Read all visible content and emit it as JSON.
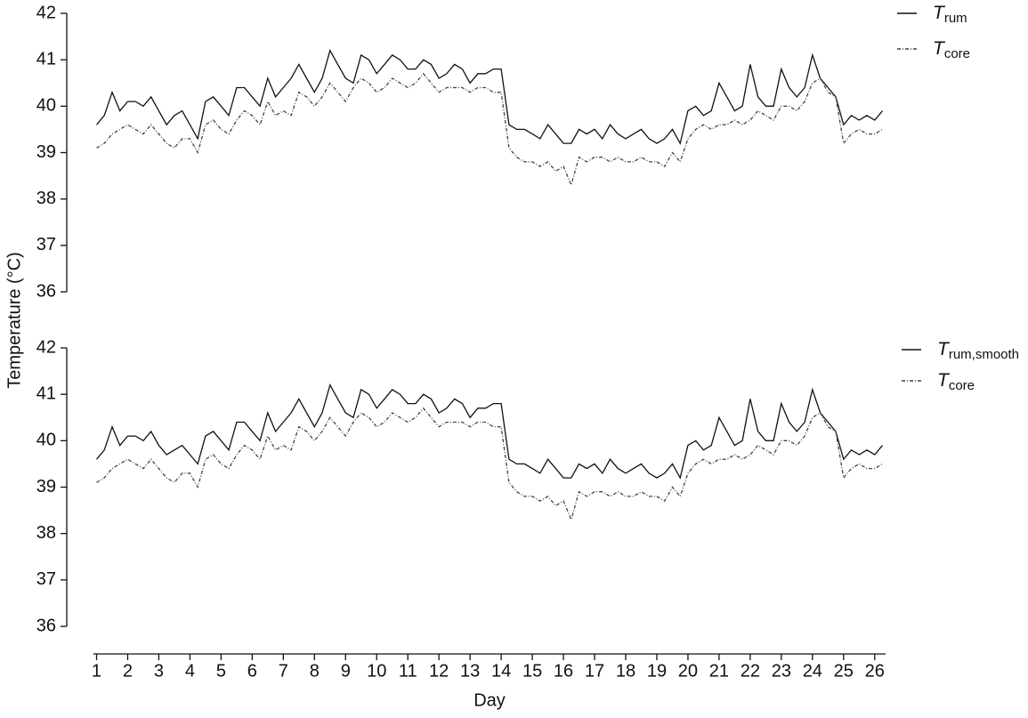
{
  "chart_data": [
    {
      "type": "line",
      "ylabel": "Temperature (°C)",
      "x": [
        1,
        1.25,
        1.5,
        1.75,
        2,
        2.25,
        2.5,
        2.75,
        3,
        3.25,
        3.5,
        3.75,
        4,
        4.25,
        4.5,
        4.75,
        5,
        5.25,
        5.5,
        5.75,
        6,
        6.25,
        6.5,
        6.75,
        7,
        7.25,
        7.5,
        7.75,
        8,
        8.25,
        8.5,
        8.75,
        9,
        9.25,
        9.5,
        9.75,
        10,
        10.25,
        10.5,
        10.75,
        11,
        11.25,
        11.5,
        11.75,
        12,
        12.25,
        12.5,
        12.75,
        13,
        13.25,
        13.5,
        13.75,
        14,
        14.25,
        14.5,
        14.75,
        15,
        15.25,
        15.5,
        15.75,
        16,
        16.25,
        16.5,
        16.75,
        17,
        17.25,
        17.5,
        17.75,
        18,
        18.25,
        18.5,
        18.75,
        19,
        19.25,
        19.5,
        19.75,
        20,
        20.25,
        20.5,
        20.75,
        21,
        21.25,
        21.5,
        21.75,
        22,
        22.25,
        22.5,
        22.75,
        23,
        23.25,
        23.5,
        23.75,
        24,
        24.25,
        24.5,
        24.75,
        25,
        25.25,
        25.5,
        25.75,
        26,
        26.25
      ],
      "series": [
        {
          "name": "T",
          "name_subscript": "rum",
          "color": "#111111",
          "line_style": "solid",
          "values": [
            39.6,
            39.8,
            40.3,
            39.9,
            40.1,
            40.1,
            40.0,
            40.2,
            39.9,
            39.6,
            39.8,
            39.9,
            39.6,
            39.3,
            40.1,
            40.2,
            40.0,
            39.8,
            40.4,
            40.4,
            40.2,
            40.0,
            40.6,
            40.2,
            40.4,
            40.6,
            40.9,
            40.6,
            40.3,
            40.6,
            41.2,
            40.9,
            40.6,
            40.5,
            41.1,
            41.0,
            40.7,
            40.9,
            41.1,
            41.0,
            40.8,
            40.8,
            41.0,
            40.9,
            40.6,
            40.7,
            40.9,
            40.8,
            40.5,
            40.7,
            40.7,
            40.8,
            40.8,
            39.6,
            39.5,
            39.5,
            39.4,
            39.3,
            39.6,
            39.4,
            39.2,
            39.2,
            39.5,
            39.4,
            39.5,
            39.3,
            39.6,
            39.4,
            39.3,
            39.4,
            39.5,
            39.3,
            39.2,
            39.3,
            39.5,
            39.2,
            39.9,
            40.0,
            39.8,
            39.9,
            40.5,
            40.2,
            39.9,
            40.0,
            40.9,
            40.2,
            40.0,
            40.0,
            40.8,
            40.4,
            40.2,
            40.4,
            41.1,
            40.6,
            40.4,
            40.2,
            39.6,
            39.8,
            39.7,
            39.8,
            39.7,
            39.9
          ]
        },
        {
          "name": "T",
          "name_subscript": "core",
          "color": "#444444",
          "line_style": "dash-dot",
          "values": [
            39.1,
            39.2,
            39.4,
            39.5,
            39.6,
            39.5,
            39.4,
            39.6,
            39.4,
            39.2,
            39.1,
            39.3,
            39.3,
            39.0,
            39.6,
            39.7,
            39.5,
            39.4,
            39.7,
            39.9,
            39.8,
            39.6,
            40.1,
            39.8,
            39.9,
            39.8,
            40.3,
            40.2,
            40.0,
            40.2,
            40.5,
            40.3,
            40.1,
            40.4,
            40.6,
            40.5,
            40.3,
            40.4,
            40.6,
            40.5,
            40.4,
            40.5,
            40.7,
            40.5,
            40.3,
            40.4,
            40.4,
            40.4,
            40.3,
            40.4,
            40.4,
            40.3,
            40.3,
            39.1,
            38.9,
            38.8,
            38.8,
            38.7,
            38.8,
            38.6,
            38.7,
            38.3,
            38.9,
            38.8,
            38.9,
            38.9,
            38.8,
            38.9,
            38.8,
            38.8,
            38.9,
            38.8,
            38.8,
            38.7,
            39.0,
            38.8,
            39.3,
            39.5,
            39.6,
            39.5,
            39.6,
            39.6,
            39.7,
            39.6,
            39.7,
            39.9,
            39.8,
            39.7,
            40.0,
            40.0,
            39.9,
            40.1,
            40.5,
            40.6,
            40.3,
            40.2,
            39.2,
            39.4,
            39.5,
            39.4,
            39.4,
            39.5
          ]
        }
      ],
      "xlim": [
        0.9,
        26.35
      ],
      "ylim": [
        36,
        42
      ],
      "yticks": [
        36,
        37,
        38,
        39,
        40,
        41,
        42
      ]
    },
    {
      "type": "line",
      "xlabel": "Day",
      "x": [
        1,
        1.25,
        1.5,
        1.75,
        2,
        2.25,
        2.5,
        2.75,
        3,
        3.25,
        3.5,
        3.75,
        4,
        4.25,
        4.5,
        4.75,
        5,
        5.25,
        5.5,
        5.75,
        6,
        6.25,
        6.5,
        6.75,
        7,
        7.25,
        7.5,
        7.75,
        8,
        8.25,
        8.5,
        8.75,
        9,
        9.25,
        9.5,
        9.75,
        10,
        10.25,
        10.5,
        10.75,
        11,
        11.25,
        11.5,
        11.75,
        12,
        12.25,
        12.5,
        12.75,
        13,
        13.25,
        13.5,
        13.75,
        14,
        14.25,
        14.5,
        14.75,
        15,
        15.25,
        15.5,
        15.75,
        16,
        16.25,
        16.5,
        16.75,
        17,
        17.25,
        17.5,
        17.75,
        18,
        18.25,
        18.5,
        18.75,
        19,
        19.25,
        19.5,
        19.75,
        20,
        20.25,
        20.5,
        20.75,
        21,
        21.25,
        21.5,
        21.75,
        22,
        22.25,
        22.5,
        22.75,
        23,
        23.25,
        23.5,
        23.75,
        24,
        24.25,
        24.5,
        24.75,
        25,
        25.25,
        25.5,
        25.75,
        26,
        26.25
      ],
      "series": [
        {
          "name": "T",
          "name_subscript": "rum,smooth",
          "color": "#111111",
          "line_style": "solid",
          "values": [
            39.6,
            39.8,
            40.3,
            39.9,
            40.1,
            40.1,
            40.0,
            40.2,
            39.9,
            39.7,
            39.8,
            39.9,
            39.7,
            39.5,
            40.1,
            40.2,
            40.0,
            39.8,
            40.4,
            40.4,
            40.2,
            40.0,
            40.6,
            40.2,
            40.4,
            40.6,
            40.9,
            40.6,
            40.3,
            40.6,
            41.2,
            40.9,
            40.6,
            40.5,
            41.1,
            41.0,
            40.7,
            40.9,
            41.1,
            41.0,
            40.8,
            40.8,
            41.0,
            40.9,
            40.6,
            40.7,
            40.9,
            40.8,
            40.5,
            40.7,
            40.7,
            40.8,
            40.8,
            39.6,
            39.5,
            39.5,
            39.4,
            39.3,
            39.6,
            39.4,
            39.2,
            39.2,
            39.5,
            39.4,
            39.5,
            39.3,
            39.6,
            39.4,
            39.3,
            39.4,
            39.5,
            39.3,
            39.2,
            39.3,
            39.5,
            39.2,
            39.9,
            40.0,
            39.8,
            39.9,
            40.5,
            40.2,
            39.9,
            40.0,
            40.9,
            40.2,
            40.0,
            40.0,
            40.8,
            40.4,
            40.2,
            40.4,
            41.1,
            40.6,
            40.4,
            40.2,
            39.6,
            39.8,
            39.7,
            39.8,
            39.7,
            39.9
          ]
        },
        {
          "name": "T",
          "name_subscript": "core",
          "color": "#444444",
          "line_style": "dash-dot",
          "values": [
            39.1,
            39.2,
            39.4,
            39.5,
            39.6,
            39.5,
            39.4,
            39.6,
            39.4,
            39.2,
            39.1,
            39.3,
            39.3,
            39.0,
            39.6,
            39.7,
            39.5,
            39.4,
            39.7,
            39.9,
            39.8,
            39.6,
            40.1,
            39.8,
            39.9,
            39.8,
            40.3,
            40.2,
            40.0,
            40.2,
            40.5,
            40.3,
            40.1,
            40.4,
            40.6,
            40.5,
            40.3,
            40.4,
            40.6,
            40.5,
            40.4,
            40.5,
            40.7,
            40.5,
            40.3,
            40.4,
            40.4,
            40.4,
            40.3,
            40.4,
            40.4,
            40.3,
            40.3,
            39.1,
            38.9,
            38.8,
            38.8,
            38.7,
            38.8,
            38.6,
            38.7,
            38.3,
            38.9,
            38.8,
            38.9,
            38.9,
            38.8,
            38.9,
            38.8,
            38.8,
            38.9,
            38.8,
            38.8,
            38.7,
            39.0,
            38.8,
            39.3,
            39.5,
            39.6,
            39.5,
            39.6,
            39.6,
            39.7,
            39.6,
            39.7,
            39.9,
            39.8,
            39.7,
            40.0,
            40.0,
            39.9,
            40.1,
            40.5,
            40.6,
            40.3,
            40.2,
            39.2,
            39.4,
            39.5,
            39.4,
            39.4,
            39.5
          ]
        }
      ],
      "xlim": [
        0.9,
        26.35
      ],
      "xticks": [
        1,
        2,
        3,
        4,
        5,
        6,
        7,
        8,
        9,
        10,
        11,
        12,
        13,
        14,
        15,
        16,
        17,
        18,
        19,
        20,
        21,
        22,
        23,
        24,
        25,
        26
      ],
      "ylim": [
        36,
        42
      ],
      "yticks": [
        36,
        37,
        38,
        39,
        40,
        41,
        42
      ]
    }
  ]
}
